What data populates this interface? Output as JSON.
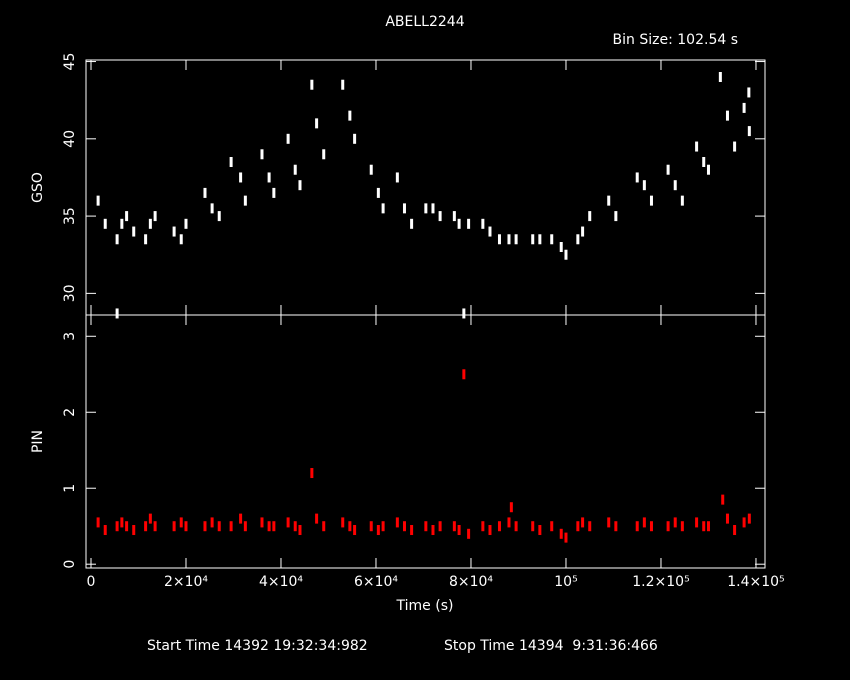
{
  "chart_data": [
    {
      "type": "scatter",
      "title": "ABELL2244",
      "annotation": "Bin Size: 102.54 s",
      "ylabel": "GSO",
      "xlim": [
        -1050,
        141900
      ],
      "ylim": [
        28.6,
        45.1
      ],
      "yticks": [
        30,
        35,
        40,
        45
      ],
      "series": [
        {
          "name": "GSO",
          "color": "#ffffff",
          "x": [
            1500,
            3000,
            5500,
            5500,
            6500,
            7500,
            9000,
            11500,
            12500,
            13500,
            17500,
            19000,
            20000,
            24000,
            25500,
            27000,
            29500,
            31500,
            32500,
            36000,
            37500,
            38500,
            41500,
            43000,
            44000,
            46500,
            47500,
            49000,
            53000,
            54500,
            55500,
            59000,
            60500,
            61500,
            64500,
            66000,
            67500,
            70500,
            72000,
            73500,
            76500,
            77500,
            78500,
            79500,
            82500,
            84000,
            86000,
            88000,
            89500,
            93000,
            94500,
            97000,
            99000,
            100000,
            102500,
            103500,
            105000,
            109000,
            110500,
            115000,
            116500,
            118000,
            121500,
            123000,
            124500,
            127500,
            129000,
            130000,
            132500,
            134000,
            135500,
            137500,
            138500,
            138600
          ],
          "values": [
            36,
            34.5,
            33.5,
            28.7,
            34.5,
            35,
            34,
            33.5,
            34.5,
            35,
            34,
            33.5,
            34.5,
            36.5,
            35.5,
            35,
            38.5,
            37.5,
            36,
            39,
            37.5,
            36.5,
            40,
            38,
            37,
            43.5,
            41,
            39,
            43.5,
            41.5,
            40,
            38,
            36.5,
            35.5,
            37.5,
            35.5,
            34.5,
            35.5,
            35.5,
            35,
            35,
            34.5,
            28.7,
            34.5,
            34.5,
            34,
            33.5,
            33.5,
            33.5,
            33.5,
            33.5,
            33.5,
            33,
            32.5,
            33.5,
            34,
            35,
            36,
            35,
            37.5,
            37,
            36,
            38,
            37,
            36,
            39.5,
            38.5,
            38,
            44,
            41.5,
            39.5,
            42,
            43,
            40.5
          ]
        }
      ]
    },
    {
      "type": "scatter",
      "ylabel": "PIN",
      "xlabel": "Time (s)",
      "xlim": [
        -1050,
        141900
      ],
      "ylim": [
        -0.05,
        3.28
      ],
      "yticks": [
        0,
        1,
        2,
        3
      ],
      "xticks": [
        0,
        {
          "value": 20000,
          "label": "2×10⁴"
        },
        {
          "value": 40000,
          "label": "4×10⁴"
        },
        {
          "value": 60000,
          "label": "6×10⁴"
        },
        {
          "value": 80000,
          "label": "8×10⁴"
        },
        {
          "value": 100000,
          "label": "10⁵"
        },
        {
          "value": 120000,
          "label": "1.2×10⁵"
        },
        {
          "value": 140000,
          "label": "1.4×10⁵"
        }
      ],
      "series": [
        {
          "name": "PIN",
          "color": "#ff0000",
          "x": [
            1500,
            3000,
            5500,
            6500,
            7500,
            9000,
            11500,
            12500,
            13500,
            17500,
            19000,
            20000,
            24000,
            25500,
            27000,
            29500,
            31500,
            32500,
            36000,
            37500,
            38500,
            41500,
            43000,
            44000,
            46500,
            47500,
            49000,
            53000,
            54500,
            55500,
            59000,
            60500,
            61500,
            64500,
            66000,
            67500,
            70500,
            72000,
            73500,
            76500,
            77500,
            78500,
            79500,
            82500,
            84000,
            86000,
            88000,
            88500,
            89500,
            93000,
            94500,
            97000,
            99000,
            100000,
            102500,
            103500,
            105000,
            109000,
            110500,
            115000,
            116500,
            118000,
            121500,
            123000,
            124500,
            127500,
            129000,
            130000,
            133000,
            134000,
            135500,
            137500,
            138600
          ],
          "values": [
            0.55,
            0.45,
            0.5,
            0.55,
            0.5,
            0.45,
            0.5,
            0.6,
            0.5,
            0.5,
            0.55,
            0.5,
            0.5,
            0.55,
            0.5,
            0.5,
            0.6,
            0.5,
            0.55,
            0.5,
            0.5,
            0.55,
            0.5,
            0.45,
            1.2,
            0.6,
            0.5,
            0.55,
            0.5,
            0.45,
            0.5,
            0.45,
            0.5,
            0.55,
            0.5,
            0.45,
            0.5,
            0.45,
            0.5,
            0.5,
            0.45,
            2.5,
            0.4,
            0.5,
            0.45,
            0.5,
            0.55,
            0.75,
            0.5,
            0.5,
            0.45,
            0.5,
            0.4,
            0.35,
            0.5,
            0.55,
            0.5,
            0.55,
            0.5,
            0.5,
            0.55,
            0.5,
            0.5,
            0.55,
            0.5,
            0.55,
            0.5,
            0.5,
            0.85,
            0.6,
            0.45,
            0.55,
            0.6
          ]
        }
      ]
    }
  ],
  "footer": {
    "start": "Start Time 14392 19:32:34:982",
    "stop": "Stop Time 14394  9:31:36:466"
  }
}
